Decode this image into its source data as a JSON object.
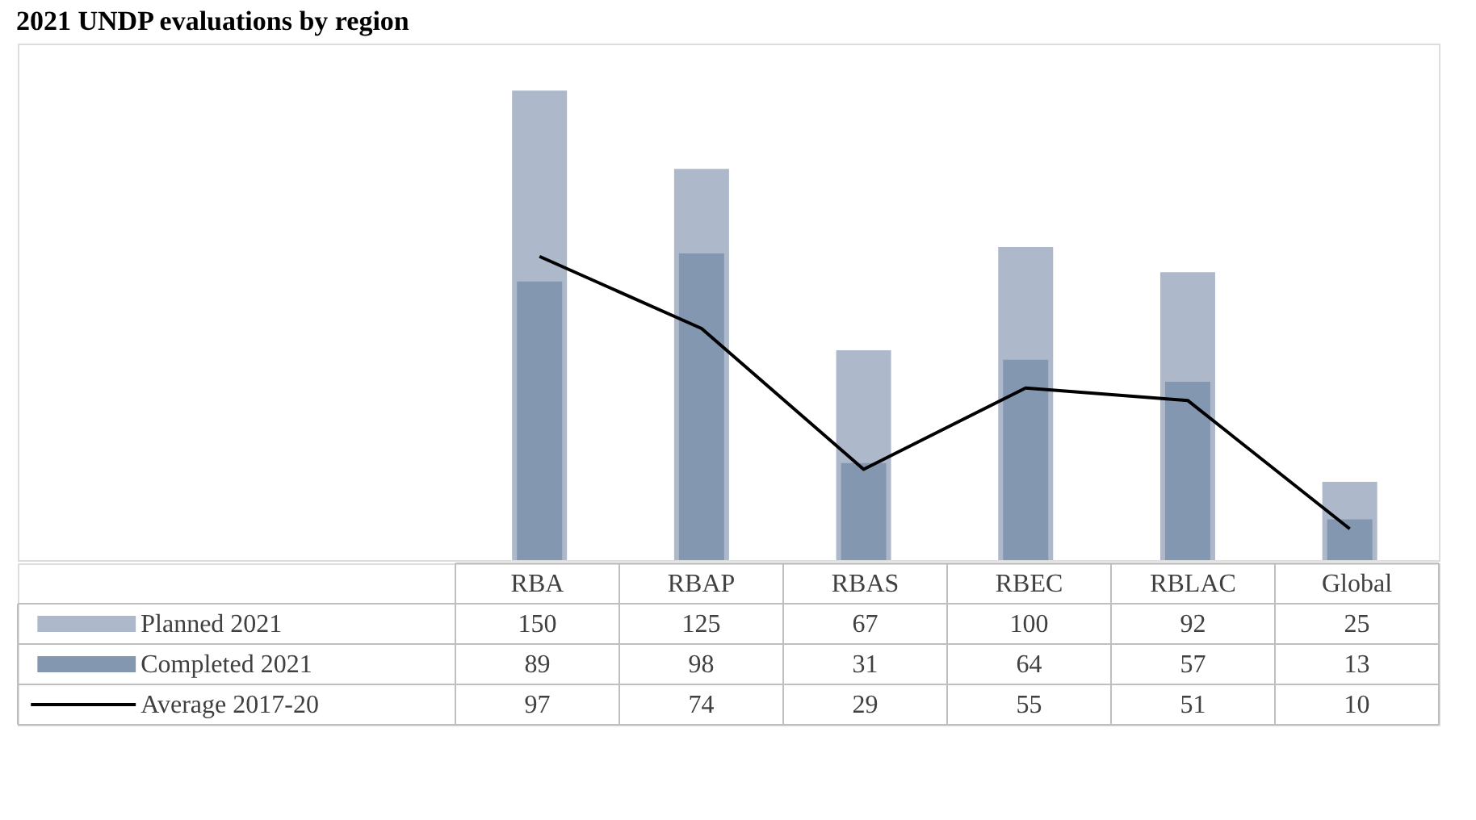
{
  "chart_data": {
    "type": "bar",
    "title": "2021 UNDP evaluations by region",
    "categories": [
      "RBA",
      "RBAP",
      "RBAS",
      "RBEC",
      "RBLAC",
      "Global"
    ],
    "series": [
      {
        "name": "Planned 2021",
        "color": "#adb9ca",
        "values": [
          150,
          125,
          67,
          100,
          92,
          25
        ]
      },
      {
        "name": "Completed 2021",
        "color": "#8497b0",
        "values": [
          89,
          98,
          31,
          64,
          57,
          13
        ]
      },
      {
        "name": "Average 2017-20",
        "type": "line",
        "line_style": "solid",
        "color": "#000000",
        "values": [
          97,
          74,
          29,
          55,
          51,
          10
        ]
      }
    ],
    "data_labels": true,
    "legend": "bottom"
  }
}
